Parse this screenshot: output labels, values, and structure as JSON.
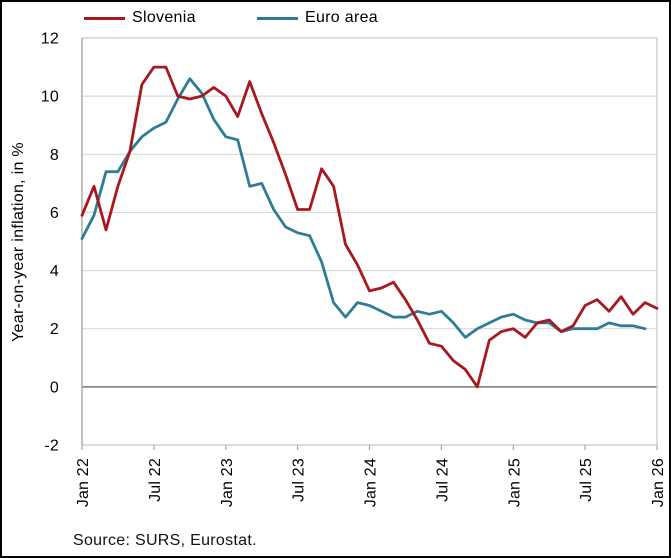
{
  "legend": {
    "items": [
      {
        "label": "Slovenia",
        "color": "#A6191E"
      },
      {
        "label": "Euro area",
        "color": "#2E7D96"
      }
    ]
  },
  "source_note": "Source: SURS, Eurostat.",
  "colors": {
    "slovenia_line": "#A6191E",
    "euro_area_line": "#2E7D96",
    "gridline": "#D9D9D9",
    "zero_line": "#767676",
    "plot_border": "#C9C9C9",
    "axis_line": "#A6A6A6",
    "text": "#000000"
  },
  "chart_data": {
    "type": "line",
    "title": "",
    "xlabel": "",
    "ylabel": "Year-on-year inflation, in %",
    "ylim": [
      -2,
      12
    ],
    "y_ticks": [
      12,
      10,
      8,
      6,
      4,
      2,
      0,
      -2
    ],
    "y_gridlines": [
      0,
      2,
      4,
      6,
      8,
      10
    ],
    "grid": "horizontal",
    "zero_line_emphasized": true,
    "legend_position": "top",
    "frequency": "monthly",
    "x_start_month": "Jan 2022",
    "x_span_months": 48,
    "x_tick_positions_months": [
      0,
      6,
      12,
      18,
      24,
      30,
      36,
      42,
      48
    ],
    "x_tick_labels": [
      "Jan 22",
      "Jul 22",
      "Jan 23",
      "Jul 23",
      "Jan 24",
      "Jul 24",
      "Jan 25",
      "Jul 25",
      "Jan 26"
    ],
    "series": [
      {
        "name": "Euro area",
        "color": "#2E7D96",
        "first_month": "2022-01",
        "last_month": "2025-12",
        "values": [
          5.1,
          5.9,
          7.4,
          7.4,
          8.1,
          8.6,
          8.9,
          9.1,
          9.9,
          10.6,
          10.1,
          9.2,
          8.6,
          8.5,
          6.9,
          7.0,
          6.1,
          5.5,
          5.3,
          5.2,
          4.3,
          2.9,
          2.4,
          2.9,
          2.8,
          2.6,
          2.4,
          2.4,
          2.6,
          2.5,
          2.6,
          2.2,
          1.7,
          2.0,
          2.2,
          2.4,
          2.5,
          2.3,
          2.2,
          2.2,
          1.9,
          2.0,
          2.0,
          2.0,
          2.2,
          2.1,
          2.1,
          2.0
        ]
      },
      {
        "name": "Slovenia",
        "color": "#A6191E",
        "first_month": "2022-01",
        "last_month": "2026-01",
        "values": [
          5.9,
          6.9,
          5.4,
          6.9,
          8.1,
          10.4,
          11.0,
          11.0,
          10.0,
          9.9,
          10.0,
          10.3,
          10.0,
          9.3,
          10.5,
          9.4,
          8.4,
          7.3,
          6.1,
          6.1,
          7.5,
          6.9,
          4.9,
          4.2,
          3.3,
          3.4,
          3.6,
          3.0,
          2.3,
          1.5,
          1.4,
          0.9,
          0.6,
          0.0,
          1.6,
          1.9,
          2.0,
          1.7,
          2.2,
          2.3,
          1.9,
          2.1,
          2.8,
          3.0,
          2.6,
          3.1,
          2.5,
          2.9,
          2.7
        ]
      }
    ]
  }
}
